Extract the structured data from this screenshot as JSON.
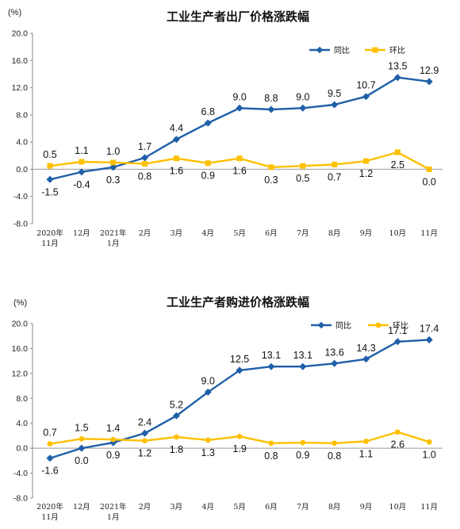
{
  "colors": {
    "yoy": "#1f5fa8",
    "mom": "#ffc000"
  },
  "chart_data": [
    {
      "type": "line",
      "title": "工业生产者出厂价格涨跌幅",
      "unit": "(%)",
      "y_ticks": [
        "20.0",
        "16.0",
        "12.0",
        "8.0",
        "4.0",
        "0.0",
        "-4.0",
        "-8.0"
      ],
      "ylim": [
        -8,
        20
      ],
      "categories": [
        [
          "2020年",
          "11月"
        ],
        [
          "12月"
        ],
        [
          "2021年",
          "1月"
        ],
        [
          "2月"
        ],
        [
          "3月"
        ],
        [
          "4月"
        ],
        [
          "5月"
        ],
        [
          "6月"
        ],
        [
          "7月"
        ],
        [
          "8月"
        ],
        [
          "9月"
        ],
        [
          "10月"
        ],
        [
          "11月"
        ]
      ],
      "legend_position": "top-right",
      "series": [
        {
          "name": "同比",
          "values": [
            -1.5,
            -0.4,
            0.3,
            1.7,
            4.4,
            6.8,
            9.0,
            8.8,
            9.0,
            9.5,
            10.7,
            13.5,
            12.9
          ],
          "labels": [
            "-1.5",
            "-0.4",
            "0.3",
            "1.7",
            "4.4",
            "6.8",
            "9.0",
            "8.8",
            "9.0",
            "9.5",
            "10.7",
            "13.5",
            "12.9"
          ]
        },
        {
          "name": "环比",
          "values": [
            0.5,
            1.1,
            1.0,
            0.8,
            1.6,
            0.9,
            1.6,
            0.3,
            0.5,
            0.7,
            1.2,
            2.5,
            0.0
          ],
          "labels": [
            "0.5",
            "1.1",
            "1.0",
            "0.8",
            "1.6",
            "0.9",
            "1.6",
            "0.3",
            "0.5",
            "0.7",
            "1.2",
            "2.5",
            "0.0"
          ]
        }
      ]
    },
    {
      "type": "line",
      "title": "工业生产者购进价格涨跌幅",
      "unit": "(%)",
      "y_ticks": [
        "20.0",
        "16.0",
        "12.0",
        "8.0",
        "4.0",
        "0.0",
        "-4.0",
        "-8.0"
      ],
      "ylim": [
        -8,
        20
      ],
      "categories": [
        [
          "2020年",
          "11月"
        ],
        [
          "12月"
        ],
        [
          "2021年",
          "1月"
        ],
        [
          "2月"
        ],
        [
          "3月"
        ],
        [
          "4月"
        ],
        [
          "5月"
        ],
        [
          "6月"
        ],
        [
          "7月"
        ],
        [
          "8月"
        ],
        [
          "9月"
        ],
        [
          "10月"
        ],
        [
          "11月"
        ]
      ],
      "legend_position": "top-right",
      "series": [
        {
          "name": "同比",
          "values": [
            -1.6,
            0.0,
            0.9,
            2.4,
            5.2,
            9.0,
            12.5,
            13.1,
            13.1,
            13.6,
            14.3,
            17.1,
            17.4
          ],
          "labels": [
            "-1.6",
            "0.0",
            "0.9",
            "2.4",
            "5.2",
            "9.0",
            "12.5",
            "13.1",
            "13.1",
            "13.6",
            "14.3",
            "17.1",
            "17.4"
          ]
        },
        {
          "name": "环比",
          "values": [
            0.7,
            1.5,
            1.4,
            1.2,
            1.8,
            1.3,
            1.9,
            0.8,
            0.9,
            0.8,
            1.1,
            2.6,
            1.0
          ],
          "labels": [
            "0.7",
            "1.5",
            "1.4",
            "1.2",
            "1.8",
            "1.3",
            "1.9",
            "0.8",
            "0.9",
            "0.8",
            "1.1",
            "2.6",
            "1.0"
          ]
        }
      ]
    }
  ]
}
